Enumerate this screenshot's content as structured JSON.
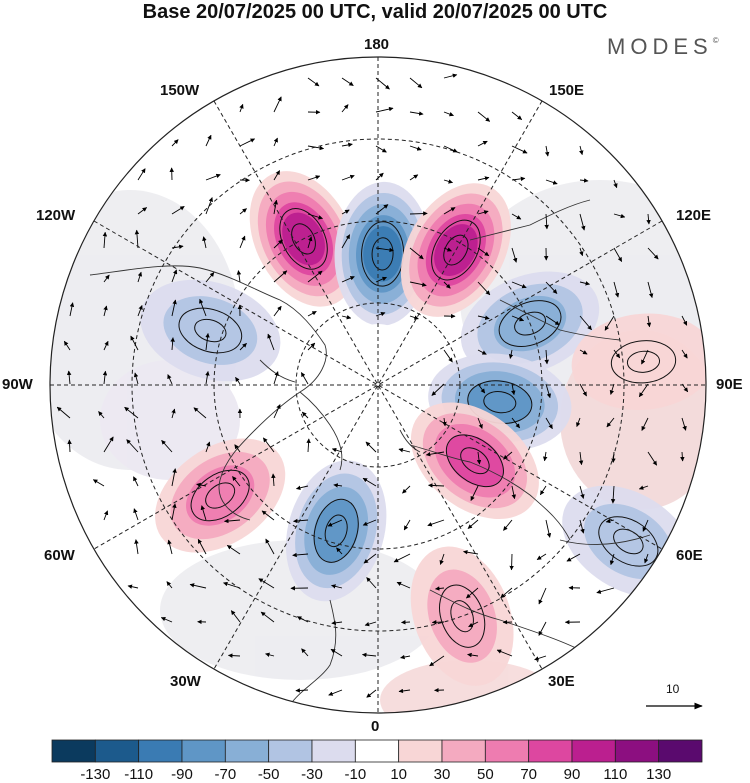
{
  "title": "Base 20/07/2025 00 UTC, valid 20/07/2025 00 UTC",
  "brand": {
    "name": "MODES",
    "mark": "©"
  },
  "longitude_labels": {
    "top": "180",
    "bottom": "0",
    "left": "90W",
    "right": "90E",
    "upper_left_1": "150W",
    "upper_left_2": "120W",
    "upper_right_1": "150E",
    "upper_right_2": "120E",
    "lower_left_1": "60W",
    "lower_left_2": "30W",
    "lower_right_1": "60E",
    "lower_right_2": "30E"
  },
  "vector_scale": {
    "label": "10"
  },
  "colorbar": {
    "labels": [
      "-130",
      "-110",
      "-90",
      "-70",
      "-50",
      "-30",
      "-10",
      "10",
      "30",
      "50",
      "70",
      "90",
      "110",
      "130"
    ],
    "colors": [
      "#0b3a5e",
      "#1c5a8c",
      "#3a7bb3",
      "#5f96c6",
      "#88afd6",
      "#b1c4e3",
      "#dcdcee",
      "#ffffff",
      "#f8d6d6",
      "#f4aac0",
      "#ee7cb0",
      "#dd47a0",
      "#bb1f8f",
      "#8c0f80",
      "#5a0a6e"
    ]
  },
  "anomaly_features": [
    {
      "name": "pos-high-150w",
      "lon_deg": -153,
      "colat_deg": 40,
      "value": 90
    },
    {
      "name": "neg-low-180",
      "lon_deg": 178,
      "colat_deg": 32,
      "value": -90
    },
    {
      "name": "pos-high-150e",
      "lon_deg": 150,
      "colat_deg": 38,
      "value": 90
    },
    {
      "name": "neg-low-120e",
      "lon_deg": 112,
      "colat_deg": 40,
      "value": -60
    },
    {
      "name": "neg-low-90e",
      "lon_deg": 82,
      "colat_deg": 30,
      "value": -70
    },
    {
      "name": "pos-high-60e",
      "lon_deg": 52,
      "colat_deg": 30,
      "value": 70
    },
    {
      "name": "pos-high-60w",
      "lon_deg": -55,
      "colat_deg": 47,
      "value": 60
    },
    {
      "name": "neg-low-20w",
      "lon_deg": -16,
      "colat_deg": 37,
      "value": -70
    },
    {
      "name": "neg-region-110w",
      "lon_deg": -108,
      "colat_deg": 43,
      "value": -30
    },
    {
      "name": "pos-region-95e",
      "lon_deg": 95,
      "colat_deg": 65,
      "value": 20
    },
    {
      "name": "neg-region-60e",
      "lon_deg": 58,
      "colat_deg": 72,
      "value": -40
    },
    {
      "name": "pos-region-20e",
      "lon_deg": 20,
      "colat_deg": 60,
      "value": 40
    }
  ]
}
